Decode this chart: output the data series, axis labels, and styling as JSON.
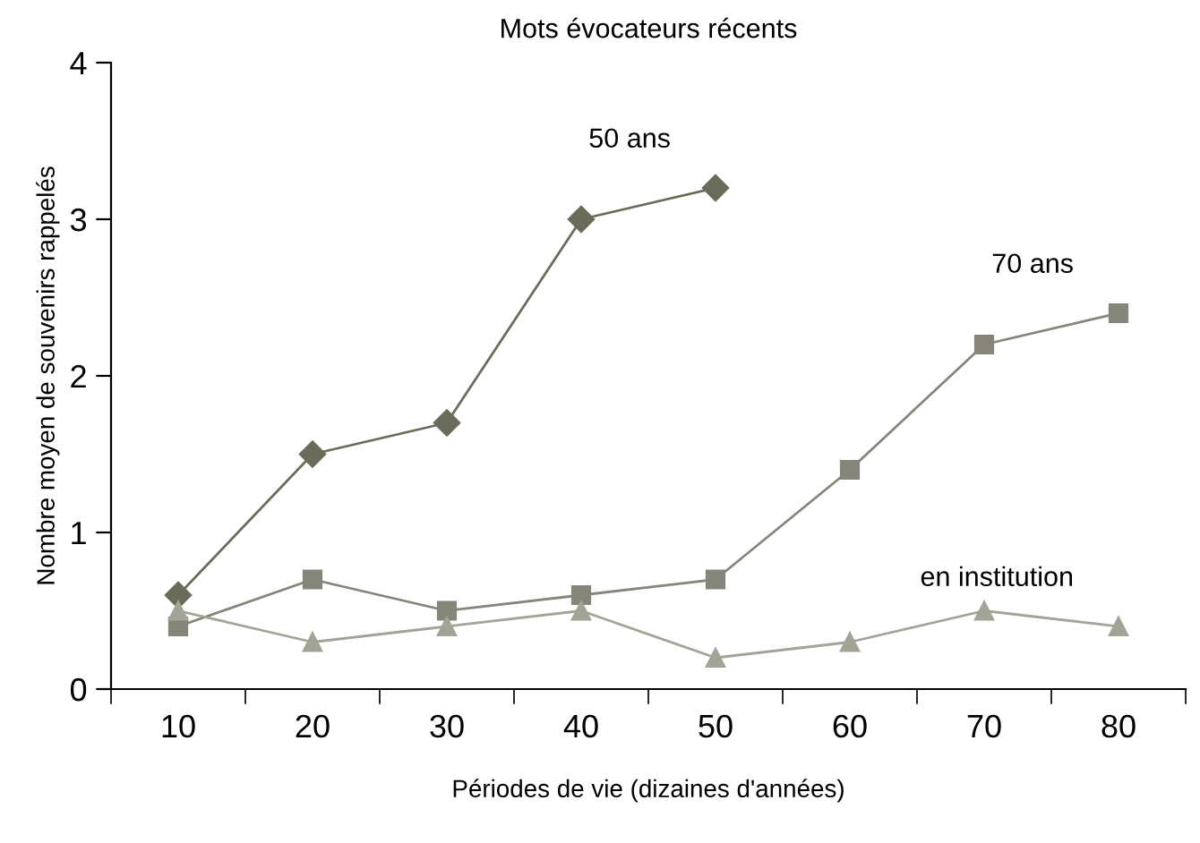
{
  "chart_data": {
    "type": "line",
    "title": "Mots évocateurs récents",
    "xlabel": "Périodes de vie (dizaines d'années)",
    "ylabel": "Nombre moyen de souvenirs rappelés",
    "categories": [
      "10",
      "20",
      "30",
      "40",
      "50",
      "60",
      "70",
      "80"
    ],
    "series": [
      {
        "name": "50 ans",
        "color": "#6b6b5a",
        "marker": "diamond",
        "values": [
          0.6,
          1.5,
          1.7,
          3.0,
          3.2,
          null,
          null,
          null
        ]
      },
      {
        "name": "70 ans",
        "color": "#85857a",
        "marker": "square",
        "values": [
          0.4,
          0.7,
          0.5,
          0.6,
          0.7,
          1.4,
          2.2,
          2.4
        ]
      },
      {
        "name": "en institution",
        "color": "#a3a396",
        "marker": "triangle",
        "values": [
          0.5,
          0.3,
          0.4,
          0.5,
          0.2,
          0.3,
          0.5,
          0.4
        ]
      }
    ],
    "ylim": [
      0,
      4
    ],
    "yticks": [
      0,
      1,
      2,
      3,
      4
    ],
    "grid": false,
    "legend": false
  }
}
